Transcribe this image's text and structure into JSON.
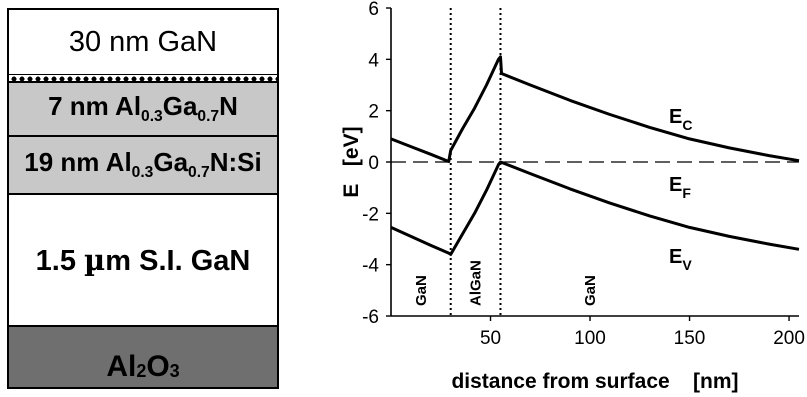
{
  "layer_stack": {
    "layers": [
      {
        "label": "30 nm GaN"
      },
      {
        "label_parts": [
          "7 nm Al",
          "0.3",
          "Ga",
          "0.7",
          "N"
        ]
      },
      {
        "label_parts": [
          "19 nm Al",
          "0.3",
          "Ga",
          "0.7",
          "N:Si"
        ]
      },
      {
        "label_parts": [
          "1.5 ",
          "µ",
          "m S.I. GaN"
        ]
      },
      {
        "label_parts": [
          "Al",
          "2",
          "O",
          "3"
        ]
      }
    ]
  },
  "chart_data": {
    "type": "line",
    "xlabel": "distance from surface    [nm]",
    "ylabel": "E   [eV]",
    "xlim": [
      0,
      205
    ],
    "ylim": [
      -6,
      6
    ],
    "xticks": [
      50,
      100,
      150,
      200
    ],
    "yticks": [
      -6,
      -4,
      -2,
      0,
      2,
      4,
      6
    ],
    "grid": false,
    "interfaces_nm": [
      30,
      55
    ],
    "regions": [
      "GaN",
      "AlGaN",
      "GaN"
    ],
    "series": [
      {
        "name_parts": [
          "E",
          "C"
        ],
        "x": [
          0,
          10,
          20,
          29,
          30,
          36,
          42,
          48,
          54,
          55,
          55.5,
          70,
          90,
          110,
          130,
          150,
          170,
          190,
          205
        ],
        "y": [
          0.9,
          0.6,
          0.3,
          0.02,
          0.45,
          1.3,
          2.1,
          3.0,
          4.0,
          4.1,
          3.45,
          3.0,
          2.4,
          1.85,
          1.35,
          0.9,
          0.55,
          0.25,
          0.05
        ]
      },
      {
        "name_parts": [
          "E",
          "F"
        ],
        "x": [
          0,
          205
        ],
        "y": [
          0,
          0
        ],
        "dashed": true
      },
      {
        "name_parts": [
          "E",
          "V"
        ],
        "x": [
          0,
          10,
          20,
          29,
          30,
          36,
          42,
          48,
          54,
          55,
          70,
          90,
          110,
          130,
          150,
          170,
          190,
          205
        ],
        "y": [
          -2.55,
          -2.9,
          -3.25,
          -3.55,
          -3.6,
          -2.8,
          -2.0,
          -1.1,
          -0.1,
          0.0,
          -0.45,
          -1.05,
          -1.6,
          -2.1,
          -2.55,
          -2.9,
          -3.2,
          -3.4
        ]
      }
    ]
  }
}
